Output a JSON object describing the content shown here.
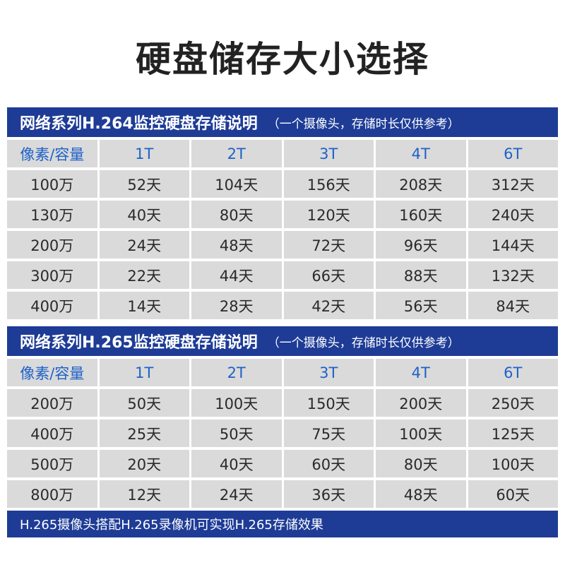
{
  "title": "硬盘储存大小选择",
  "h264": {
    "banner": "网络系列H.264监控硬盘存储说明",
    "note": "（一个摄像头，存储时长仅供参考）",
    "header": [
      "像素/容量",
      "1T",
      "2T",
      "3T",
      "4T",
      "6T"
    ],
    "rows": [
      [
        "100万",
        "52天",
        "104天",
        "156天",
        "208天",
        "312天"
      ],
      [
        "130万",
        "40天",
        "80天",
        "120天",
        "160天",
        "240天"
      ],
      [
        "200万",
        "24天",
        "48天",
        "72天",
        "96天",
        "144天"
      ],
      [
        "300万",
        "22天",
        "44天",
        "66天",
        "88天",
        "132天"
      ],
      [
        "400万",
        "14天",
        "28天",
        "42天",
        "56天",
        "84天"
      ]
    ]
  },
  "h265": {
    "banner": "网络系列H.265监控硬盘存储说明",
    "note": "（一个摄像头，存储时长仅供参考）",
    "header": [
      "像素/容量",
      "1T",
      "2T",
      "3T",
      "4T",
      "6T"
    ],
    "rows": [
      [
        "200万",
        "50天",
        "100天",
        "150天",
        "200天",
        "250天"
      ],
      [
        "400万",
        "25天",
        "50天",
        "75天",
        "100天",
        "125天"
      ],
      [
        "500万",
        "20天",
        "40天",
        "60天",
        "80天",
        "100天"
      ],
      [
        "800万",
        "12天",
        "24天",
        "36天",
        "48天",
        "60天"
      ]
    ]
  },
  "footer": "H.265摄像头搭配H.265录像机可实现H.265存储效果"
}
